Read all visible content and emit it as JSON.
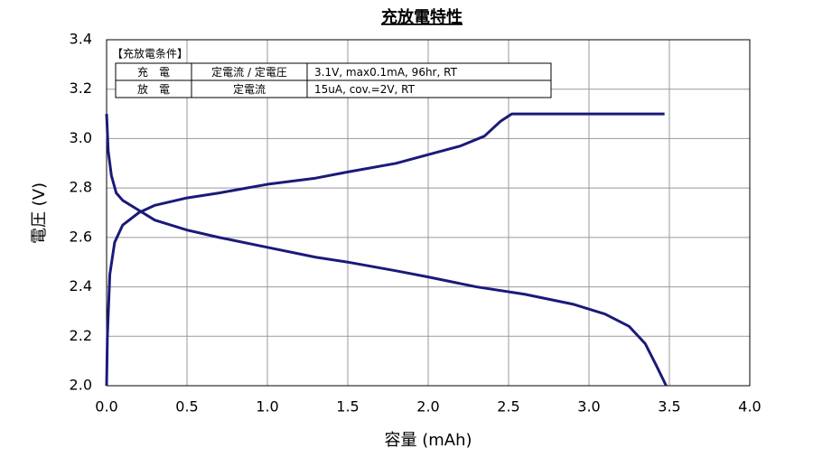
{
  "chart_data": {
    "type": "line",
    "title": "充放電特性",
    "xlabel": "容量 (mAh)",
    "ylabel": "電圧 (V)",
    "xlim": [
      0,
      4
    ],
    "ylim": [
      2,
      3.4
    ],
    "xticks": [
      {
        "value": 0,
        "label": "0.0"
      },
      0.5,
      {
        "value": 1,
        "label": "1.0"
      },
      1.5,
      {
        "value": 2,
        "label": "2.0"
      },
      2.5,
      {
        "value": 3,
        "label": "3.0"
      },
      3.5,
      {
        "value": 4,
        "label": "4.0"
      }
    ],
    "yticks": [
      {
        "value": 2,
        "label": "2.0"
      },
      2.2,
      2.4,
      2.6,
      2.8,
      {
        "value": 3,
        "label": "3.0"
      },
      3.2,
      3.4
    ],
    "grid": true,
    "series": [
      {
        "color": "#1a1a7a",
        "x": [
          0,
          0.005,
          0.02,
          0.05,
          0.1,
          0.2,
          0.3,
          0.5,
          0.7,
          1.0,
          1.3,
          1.5,
          1.8,
          2.0,
          2.2,
          2.35,
          2.45,
          2.52,
          2.6,
          3.0,
          3.47
        ],
        "values": [
          2.0,
          2.2,
          2.45,
          2.58,
          2.65,
          2.7,
          2.73,
          2.76,
          2.78,
          2.815,
          2.84,
          2.865,
          2.9,
          2.935,
          2.97,
          3.01,
          3.07,
          3.1,
          3.1,
          3.1,
          3.1
        ]
      },
      {
        "color": "#1a1a7a",
        "x": [
          0,
          0.01,
          0.03,
          0.06,
          0.1,
          0.2,
          0.3,
          0.5,
          0.7,
          1.0,
          1.3,
          1.5,
          1.8,
          2.0,
          2.3,
          2.6,
          2.9,
          3.1,
          3.25,
          3.35,
          3.42,
          3.48
        ],
        "values": [
          3.1,
          2.95,
          2.85,
          2.78,
          2.75,
          2.71,
          2.67,
          2.63,
          2.6,
          2.56,
          2.52,
          2.5,
          2.465,
          2.44,
          2.4,
          2.37,
          2.33,
          2.29,
          2.24,
          2.17,
          2.08,
          2.0
        ]
      }
    ],
    "annotation": {
      "title": "【充放電条件】",
      "rows": [
        [
          "充　電",
          "定電流 / 定電圧",
          "3.1V,  max0.1mA,  96hr,   RT"
        ],
        [
          "放　電",
          "定電流",
          "15uA,  cov.=2V,   RT"
        ]
      ]
    }
  }
}
